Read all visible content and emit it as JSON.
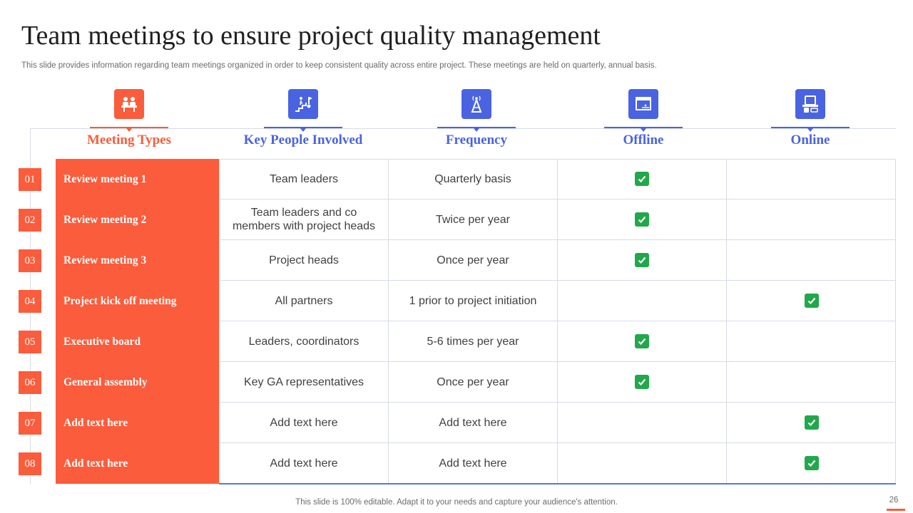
{
  "title": "Team meetings to ensure project quality management",
  "subtitle": "This slide provides information regarding team meetings organized in order to keep consistent quality across entire project. These meetings are held on quarterly, annual basis.",
  "columns": [
    {
      "label": "Meeting Types",
      "icon": "meeting-icon",
      "color": "#fa5c3c"
    },
    {
      "label": "Key People Involved",
      "icon": "stairs-person-icon",
      "color": "#4a63e0"
    },
    {
      "label": "Frequency",
      "icon": "signal-tower-icon",
      "color": "#4a63e0"
    },
    {
      "label": "Offline",
      "icon": "offline-window-icon",
      "color": "#4a63e0"
    },
    {
      "label": "Online",
      "icon": "online-devices-icon",
      "color": "#4a63e0"
    }
  ],
  "rows": [
    {
      "num": "01",
      "type": "Review meeting  1",
      "people": "Team leaders",
      "frequency": "Quarterly  basis",
      "offline": true,
      "online": false
    },
    {
      "num": "02",
      "type": "Review meeting  2",
      "people": "Team leaders and co members with project heads",
      "frequency": "Twice per year",
      "offline": true,
      "online": false
    },
    {
      "num": "03",
      "type": "Review meeting  3",
      "people": "Project heads",
      "frequency": "Once per year",
      "offline": true,
      "online": false
    },
    {
      "num": "04",
      "type": "Project kick off meeting",
      "people": "All partners",
      "frequency": "1 prior to project initiation",
      "offline": false,
      "online": true
    },
    {
      "num": "05",
      "type": "Executive board",
      "people": "Leaders, coordinators",
      "frequency": "5-6 times per year",
      "offline": true,
      "online": false
    },
    {
      "num": "06",
      "type": "General assembly",
      "people": "Key GA representatives",
      "frequency": "Once per year",
      "offline": true,
      "online": false
    },
    {
      "num": "07",
      "type": "Add text here",
      "people": "Add text here",
      "frequency": "Add text here",
      "offline": false,
      "online": true
    },
    {
      "num": "08",
      "type": "Add text here",
      "people": "Add text here",
      "frequency": "Add text here",
      "offline": false,
      "online": true
    }
  ],
  "footer": "This slide is 100% editable. Adapt it to your needs and capture your audience's attention.",
  "page_number": "26",
  "colors": {
    "accent": "#fa5c3c",
    "blue": "#4a63e0",
    "check": "#21a84a"
  }
}
